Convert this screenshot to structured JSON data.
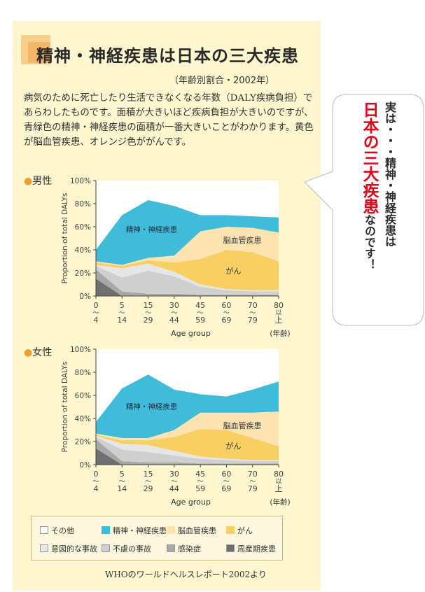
{
  "title": "精神・神経疾患は日本の三大疾患",
  "subtitle": "（年齢別割合・2002年）",
  "description": "病気のために死亡したり生活できなくなる年数（DALY疾病負担）であらわしたものです。面積が大きいほど疾病負担が大きいのですが、青緑色の精神・神経疾患の面積が一番大きいことがわかります。黄色が脳血管疾患、オレンジ色ががんです。",
  "male_label": "男性",
  "female_label": "女性",
  "chart_data": [
    {
      "type": "area",
      "name": "男性",
      "ylabel": "Proportion of total DALYs",
      "xlabel": "Age group",
      "xunit": "(年齢)",
      "yticks": [
        "0%",
        "20%",
        "40%",
        "60%",
        "80%",
        "100%"
      ],
      "ylim": [
        0,
        100
      ],
      "categories": [
        "0〜4",
        "5〜14",
        "15〜29",
        "30〜44",
        "45〜59",
        "60〜69",
        "70〜79",
        "80以上"
      ],
      "xtick_top": [
        "0",
        "5",
        "15",
        "30",
        "45",
        "60",
        "70",
        "80"
      ],
      "xtick_mid": [
        "〜",
        "〜",
        "〜",
        "〜",
        "〜",
        "〜",
        "〜",
        "以"
      ],
      "xtick_bot": [
        "4",
        "14",
        "29",
        "44",
        "59",
        "69",
        "79",
        "上"
      ],
      "series": [
        {
          "name": "周産期疾患",
          "color": "#707070",
          "values": [
            15,
            0,
            0,
            0,
            0,
            0,
            0,
            0
          ]
        },
        {
          "name": "感染症",
          "color": "#a8a8a8",
          "values": [
            8,
            4,
            2,
            2,
            1,
            1,
            1,
            1
          ]
        },
        {
          "name": "不慮の事故",
          "color": "#cfcfcf",
          "values": [
            3,
            12,
            20,
            15,
            7,
            4,
            3,
            3
          ]
        },
        {
          "name": "意図的な事故",
          "color": "#e6e6e6",
          "values": [
            1,
            8,
            6,
            4,
            2,
            1,
            1,
            1
          ]
        },
        {
          "name": "がん",
          "color": "#f8cf63",
          "values": [
            2,
            2,
            3,
            8,
            22,
            34,
            33,
            25
          ]
        },
        {
          "name": "脳血管疾患",
          "color": "#fce3b0",
          "values": [
            1,
            1,
            2,
            6,
            24,
            20,
            21,
            25
          ]
        },
        {
          "name": "精神・神経疾患",
          "color": "#40bcd8",
          "values": [
            10,
            43,
            50,
            43,
            14,
            10,
            10,
            13
          ]
        }
      ],
      "labels": {
        "mental": "精神・神経疾患",
        "cerebro": "脳血管疾患",
        "cancer": "がん"
      }
    },
    {
      "type": "area",
      "name": "女性",
      "ylabel": "Proportion of total DALYs",
      "xlabel": "Age group",
      "xunit": "(年齢)",
      "yticks": [
        "0%",
        "20%",
        "40%",
        "60%",
        "80%",
        "100%"
      ],
      "ylim": [
        0,
        100
      ],
      "categories": [
        "0〜4",
        "5〜14",
        "15〜29",
        "30〜44",
        "45〜59",
        "60〜69",
        "70〜79",
        "80以上"
      ],
      "xtick_top": [
        "0",
        "5",
        "15",
        "30",
        "45",
        "60",
        "70",
        "80"
      ],
      "xtick_mid": [
        "〜",
        "〜",
        "〜",
        "〜",
        "〜",
        "〜",
        "〜",
        "以"
      ],
      "xtick_bot": [
        "4",
        "14",
        "29",
        "44",
        "59",
        "69",
        "79",
        "上"
      ],
      "series": [
        {
          "name": "周産期疾患",
          "color": "#707070",
          "values": [
            14,
            0,
            0,
            0,
            0,
            0,
            0,
            0
          ]
        },
        {
          "name": "感染症",
          "color": "#a8a8a8",
          "values": [
            8,
            3,
            2,
            2,
            1,
            1,
            1,
            1
          ]
        },
        {
          "name": "不慮の事故",
          "color": "#cfcfcf",
          "values": [
            2,
            10,
            9,
            6,
            4,
            3,
            2,
            2
          ]
        },
        {
          "name": "意図的な事故",
          "color": "#e6e6e6",
          "values": [
            1,
            5,
            6,
            4,
            2,
            1,
            1,
            1
          ]
        },
        {
          "name": "がん",
          "color": "#f8cf63",
          "values": [
            1,
            3,
            4,
            12,
            24,
            25,
            19,
            12
          ]
        },
        {
          "name": "脳血管疾患",
          "color": "#fce3b0",
          "values": [
            1,
            2,
            2,
            6,
            14,
            15,
            22,
            30
          ]
        },
        {
          "name": "精神・神経疾患",
          "color": "#40bcd8",
          "values": [
            10,
            43,
            55,
            35,
            16,
            14,
            20,
            26
          ]
        }
      ],
      "labels": {
        "mental": "精神・神経疾患",
        "cerebro": "脳血管疾患",
        "cancer": "がん"
      }
    }
  ],
  "legend": [
    {
      "label": "その他",
      "color": "#ffffff"
    },
    {
      "label": "精神・神経疾患",
      "color": "#40bcd8"
    },
    {
      "label": "脳血管疾患",
      "color": "#fce3b0"
    },
    {
      "label": "がん",
      "color": "#f8cf63"
    },
    {
      "label": "意図的な事故",
      "color": "#e6e6e6"
    },
    {
      "label": "不慮の事故",
      "color": "#cfcfcf"
    },
    {
      "label": "感染症",
      "color": "#a8a8a8"
    },
    {
      "label": "周産期疾患",
      "color": "#707070"
    }
  ],
  "source": "WHOのワールドヘルスレポート2002より",
  "callout": {
    "line1": "実は・・・精神・神経疾患は",
    "line2_red": "日本の三大疾患",
    "line2_tail": "なのです！"
  }
}
